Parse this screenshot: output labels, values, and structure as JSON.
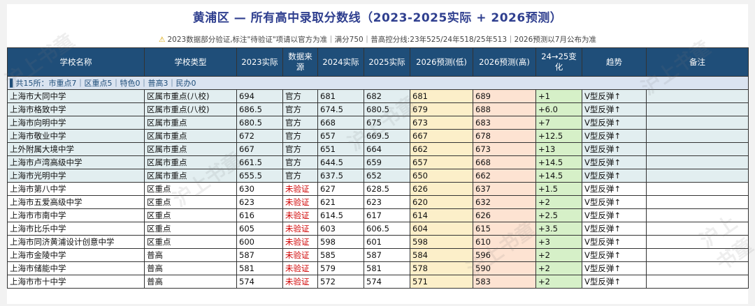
{
  "title": "黄浦区 — 所有高中录取分数线（2023-2025实际 + 2026预测）",
  "note": {
    "icon": "warning-icon",
    "text": "2023数据部分验证,标注\"待验证\"项请以官方为准｜满分750｜普高控分线:23年525/24年518/25年513｜2026预测以7月公布为准"
  },
  "columns": [
    "学校名称",
    "学校类型",
    "2023实际",
    "数据来源",
    "2024实际",
    "2025实际",
    "2026预测(低)",
    "2026预测(高)",
    "24→25变化",
    "趋势",
    "备注"
  ],
  "group_row": "▌共15所：市重点7｜区重点5｜特色0｜普高3｜民办0",
  "rows": [
    {
      "name": "上海市大同中学",
      "type": "区属市重点(八校)",
      "y2023": "694",
      "source": "官方",
      "y2024": "681",
      "y2025": "682",
      "low": "681",
      "high": "689",
      "change": "+1",
      "trend": "V型反弹↑",
      "remark": ""
    },
    {
      "name": "上海市格致中学",
      "type": "区属市重点(八校)",
      "y2023": "686.5",
      "source": "官方",
      "y2024": "674.5",
      "y2025": "680.5",
      "low": "679",
      "high": "688",
      "change": "+6.0",
      "trend": "V型反弹↑",
      "remark": ""
    },
    {
      "name": "上海市向明中学",
      "type": "区属市重点",
      "y2023": "680.5",
      "source": "官方",
      "y2024": "668",
      "y2025": "675",
      "low": "673",
      "high": "683",
      "change": "+7",
      "trend": "V型反弹↑",
      "remark": ""
    },
    {
      "name": "上海市敬业中学",
      "type": "区属市重点",
      "y2023": "672",
      "source": "官方",
      "y2024": "657",
      "y2025": "669.5",
      "low": "667",
      "high": "678",
      "change": "+12.5",
      "trend": "V型反弹↑",
      "remark": ""
    },
    {
      "name": "上外附属大境中学",
      "type": "区属市重点",
      "y2023": "667",
      "source": "官方",
      "y2024": "651",
      "y2025": "664",
      "low": "662",
      "high": "673",
      "change": "+13",
      "trend": "V型反弹↑",
      "remark": ""
    },
    {
      "name": "上海市卢湾高级中学",
      "type": "区属市重点",
      "y2023": "661.5",
      "source": "官方",
      "y2024": "644.5",
      "y2025": "659",
      "low": "657",
      "high": "668",
      "change": "+14.5",
      "trend": "V型反弹↑",
      "remark": ""
    },
    {
      "name": "上海市光明中学",
      "type": "区属市重点",
      "y2023": "655.5",
      "source": "官方",
      "y2024": "637.5",
      "y2025": "652",
      "low": "650",
      "high": "662",
      "change": "+14.5",
      "trend": "V型反弹↑",
      "remark": ""
    },
    {
      "name": "上海市第八中学",
      "type": "区重点",
      "y2023": "630",
      "source": "未验证",
      "y2024": "627",
      "y2025": "628.5",
      "low": "626",
      "high": "637",
      "change": "+1.5",
      "trend": "V型反弹↑",
      "remark": ""
    },
    {
      "name": "上海市五爱高级中学",
      "type": "区重点",
      "y2023": "623",
      "source": "未验证",
      "y2024": "621",
      "y2025": "623",
      "low": "620",
      "high": "632",
      "change": "+2",
      "trend": "V型反弹↑",
      "remark": ""
    },
    {
      "name": "上海市市南中学",
      "type": "区重点",
      "y2023": "616",
      "source": "未验证",
      "y2024": "614.5",
      "y2025": "617",
      "low": "614",
      "high": "626",
      "change": "+2.5",
      "trend": "V型反弹↑",
      "remark": ""
    },
    {
      "name": "上海市比乐中学",
      "type": "区重点",
      "y2023": "605",
      "source": "未验证",
      "y2024": "603",
      "y2025": "606.5",
      "low": "604",
      "high": "615",
      "change": "+3.5",
      "trend": "V型反弹↑",
      "remark": ""
    },
    {
      "name": "上海市同济黄浦设计创意中学",
      "type": "区重点",
      "y2023": "600",
      "source": "未验证",
      "y2024": "598",
      "y2025": "601",
      "low": "598",
      "high": "610",
      "change": "+3",
      "trend": "V型反弹↑",
      "remark": ""
    },
    {
      "name": "上海市金陵中学",
      "type": "普高",
      "y2023": "587",
      "source": "未验证",
      "y2024": "585",
      "y2025": "587",
      "low": "584",
      "high": "596",
      "change": "+2",
      "trend": "V型反弹↑",
      "remark": ""
    },
    {
      "name": "上海市储能中学",
      "type": "普高",
      "y2023": "581",
      "source": "未验证",
      "y2024": "579",
      "y2025": "581",
      "low": "578",
      "high": "590",
      "change": "+2",
      "trend": "V型反弹↑",
      "remark": ""
    },
    {
      "name": "上海市市十中学",
      "type": "普高",
      "y2023": "574",
      "source": "未验证",
      "y2024": "572",
      "y2025": "574",
      "low": "571",
      "high": "583",
      "change": "+2",
      "trend": "V型反弹↑",
      "remark": ""
    }
  ],
  "watermark": "沪上书童",
  "colors": {
    "header": "#1f4e79",
    "unverified": "#d00000",
    "low_col": "#fcefc9",
    "high_col": "#fde3d2",
    "change_col": "#d6f0c8"
  }
}
